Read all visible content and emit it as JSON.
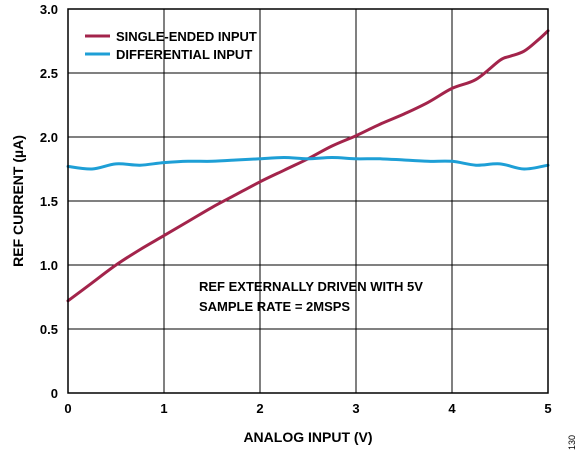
{
  "chart_data": {
    "type": "line",
    "xlabel": "ANALOG INPUT (V)",
    "ylabel": "REF CURRENT (µA)",
    "xlim": [
      0,
      5
    ],
    "ylim": [
      0,
      3.0
    ],
    "x_ticks": [
      0,
      1,
      2,
      3,
      4,
      5
    ],
    "y_ticks": [
      0,
      0.5,
      1.0,
      1.5,
      2.0,
      2.5,
      3.0
    ],
    "x_tick_labels": [
      "0",
      "1",
      "2",
      "3",
      "4",
      "5"
    ],
    "y_tick_labels": [
      "0",
      "0.5",
      "1.0",
      "1.5",
      "2.0",
      "2.5",
      "3.0"
    ],
    "grid": true,
    "legend_position": "top-left",
    "series": [
      {
        "name": "SINGLE-ENDED INPUT",
        "color": "#A3244B",
        "x": [
          0,
          0.25,
          0.5,
          0.75,
          1.0,
          1.25,
          1.5,
          1.75,
          2.0,
          2.25,
          2.5,
          2.75,
          3.0,
          3.25,
          3.5,
          3.75,
          4.0,
          4.25,
          4.5,
          4.6,
          4.75,
          4.9,
          5.0
        ],
        "y": [
          0.72,
          0.86,
          1.0,
          1.12,
          1.23,
          1.34,
          1.45,
          1.55,
          1.65,
          1.74,
          1.83,
          1.93,
          2.01,
          2.1,
          2.18,
          2.27,
          2.38,
          2.45,
          2.6,
          2.63,
          2.67,
          2.76,
          2.83
        ]
      },
      {
        "name": "DIFFERENTIAL INPUT",
        "color": "#1E9FD6",
        "x": [
          0,
          0.25,
          0.5,
          0.75,
          1.0,
          1.25,
          1.5,
          1.75,
          2.0,
          2.25,
          2.5,
          2.75,
          3.0,
          3.25,
          3.5,
          3.75,
          4.0,
          4.25,
          4.5,
          4.75,
          5.0
        ],
        "y": [
          1.77,
          1.75,
          1.79,
          1.78,
          1.8,
          1.81,
          1.81,
          1.82,
          1.83,
          1.84,
          1.83,
          1.84,
          1.83,
          1.83,
          1.82,
          1.81,
          1.81,
          1.78,
          1.79,
          1.75,
          1.78
        ]
      }
    ],
    "annotations": [
      "REF EXTERNALLY DRIVEN WITH 5V",
      "SAMPLE RATE = 2MSPS"
    ],
    "figure_id": "130"
  }
}
